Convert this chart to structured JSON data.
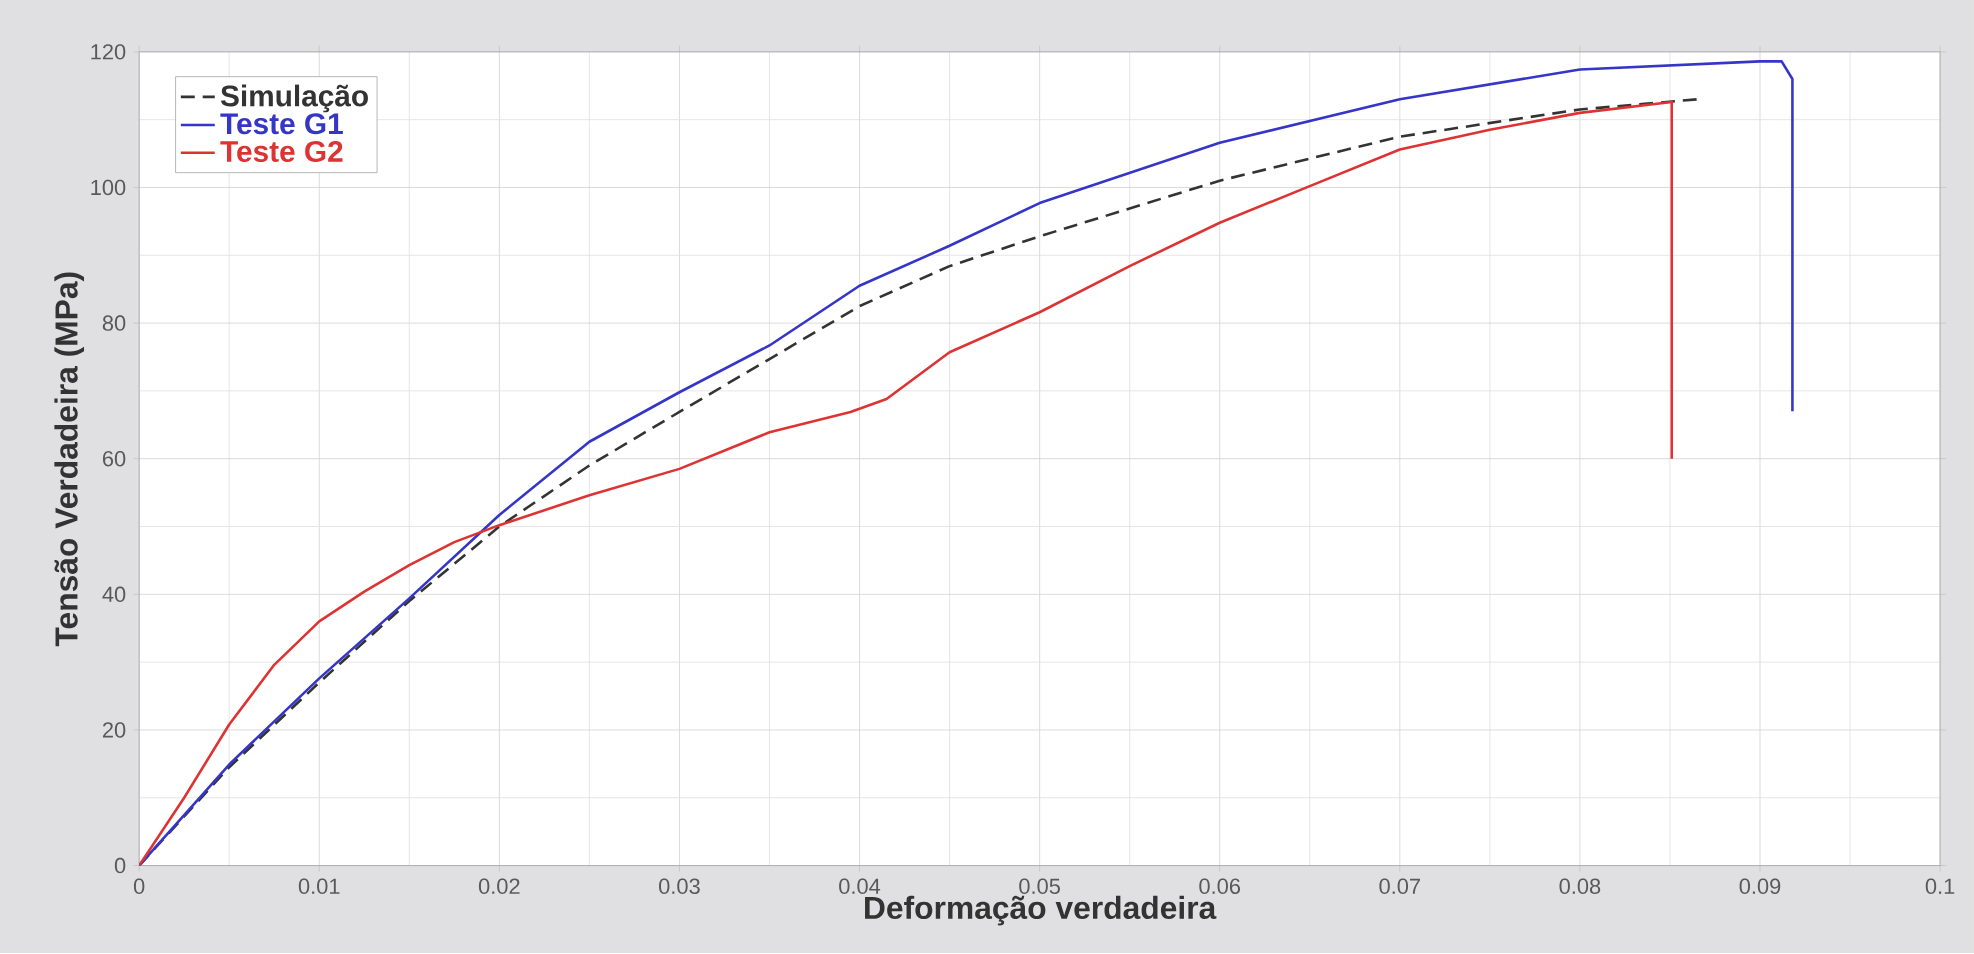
{
  "chart_data": {
    "type": "line",
    "xlabel": "Deformação verdadeira",
    "ylabel": "Tensão Verdadeira (MPa)",
    "xlim": [
      0,
      0.1
    ],
    "ylim": [
      0,
      120
    ],
    "xticks": [
      0,
      0.01,
      0.02,
      0.03,
      0.04,
      0.05,
      0.06,
      0.07,
      0.08,
      0.09,
      0.1
    ],
    "yticks": [
      0,
      20,
      40,
      60,
      80,
      100,
      120
    ],
    "grid": true,
    "legend": "top left",
    "marker": "none",
    "series": [
      {
        "name": "Simulação",
        "color": "#333333",
        "line_style": "dashed",
        "x": [
          0,
          0.005,
          0.01,
          0.015,
          0.02,
          0.025,
          0.03,
          0.035,
          0.04,
          0.045,
          0.05,
          0.06,
          0.07,
          0.08,
          0.0865
        ],
        "values": [
          0,
          14.5,
          27,
          39,
          50,
          59,
          66.9,
          74.7,
          82.5,
          88.4,
          92.8,
          101,
          107.5,
          111.5,
          113
        ]
      },
      {
        "name": "Teste G1",
        "color": "#3535c8",
        "line_style": "solid",
        "x": [
          0,
          0.005,
          0.01,
          0.015,
          0.02,
          0.025,
          0.03,
          0.035,
          0.04,
          0.045,
          0.05,
          0.06,
          0.07,
          0.08,
          0.09,
          0.0912,
          0.0918,
          0.0918
        ],
        "values": [
          0,
          14.9,
          27.6,
          39.4,
          51.7,
          62.5,
          69.8,
          76.7,
          85.5,
          91.4,
          97.7,
          106.6,
          113,
          117.4,
          118.6,
          118.6,
          116,
          67
        ]
      },
      {
        "name": "Teste G2",
        "color": "#dd3333",
        "line_style": "solid",
        "x": [
          0,
          0.0025,
          0.005,
          0.0075,
          0.01,
          0.0125,
          0.015,
          0.0175,
          0.02,
          0.025,
          0.03,
          0.035,
          0.0395,
          0.0415,
          0.045,
          0.05,
          0.055,
          0.06,
          0.065,
          0.07,
          0.075,
          0.08,
          0.0851,
          0.0851
        ],
        "values": [
          0,
          10,
          20.8,
          29.6,
          36,
          40.4,
          44.3,
          47.7,
          50.2,
          54.6,
          58.5,
          63.9,
          66.9,
          68.8,
          75.7,
          81.6,
          88.4,
          94.8,
          100.2,
          105.6,
          108.5,
          111,
          112.6,
          60
        ]
      }
    ]
  }
}
